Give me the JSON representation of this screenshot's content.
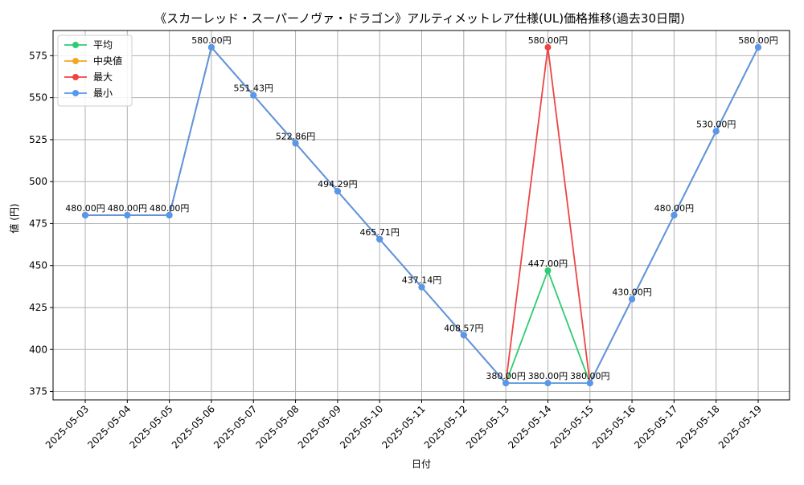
{
  "chart_data": {
    "type": "line",
    "title": "《スカーレッド・スーパーノヴァ・ドラゴン》アルティメットレア仕様(UL)価格推移(過去30日間)",
    "xlabel": "日付",
    "ylabel": "値 (円)",
    "ylim": [
      370,
      590
    ],
    "yticks": [
      375,
      400,
      425,
      450,
      475,
      500,
      525,
      550,
      575
    ],
    "grid": true,
    "legend_position": "top-left",
    "categories": [
      "2025-05-03",
      "2025-05-04",
      "2025-05-05",
      "2025-05-06",
      "2025-05-07",
      "2025-05-08",
      "2025-05-09",
      "2025-05-10",
      "2025-05-11",
      "2025-05-12",
      "2025-05-13",
      "2025-05-14",
      "2025-05-15",
      "2025-05-16",
      "2025-05-17",
      "2025-05-18",
      "2025-05-19"
    ],
    "series": [
      {
        "name": "平均",
        "color": "#2ecc71",
        "values": [
          480,
          480,
          480,
          580,
          551.43,
          522.86,
          494.29,
          465.71,
          437.14,
          408.57,
          380,
          447,
          380,
          430,
          480,
          530,
          580
        ]
      },
      {
        "name": "中央値",
        "color": "#f5a623",
        "values": [
          480,
          480,
          480,
          580,
          551.43,
          522.86,
          494.29,
          465.71,
          437.14,
          408.57,
          380,
          380,
          380,
          430,
          480,
          530,
          580
        ]
      },
      {
        "name": "最大",
        "color": "#ef4444",
        "values": [
          480,
          480,
          480,
          580,
          551.43,
          522.86,
          494.29,
          465.71,
          437.14,
          408.57,
          380,
          580,
          380,
          430,
          480,
          530,
          580
        ]
      },
      {
        "name": "最小",
        "color": "#5599ee",
        "values": [
          480,
          480,
          480,
          580,
          551.43,
          522.86,
          494.29,
          465.71,
          437.14,
          408.57,
          380,
          380,
          380,
          430,
          480,
          530,
          580
        ]
      }
    ],
    "data_labels": [
      "480.00円",
      "480.00円",
      "480.00円",
      "580.00円",
      "551.43円",
      "522.86円",
      "494.29円",
      "465.71円",
      "437.14円",
      "408.57円",
      "380.00円",
      "380.00円",
      "380.00円",
      "430.00円",
      "480.00円",
      "530.00円",
      "580.00円"
    ],
    "extra_labels": [
      {
        "index": 11,
        "value": 580,
        "text": "580.00円"
      },
      {
        "index": 11,
        "value": 447,
        "text": "447.00円"
      }
    ]
  }
}
